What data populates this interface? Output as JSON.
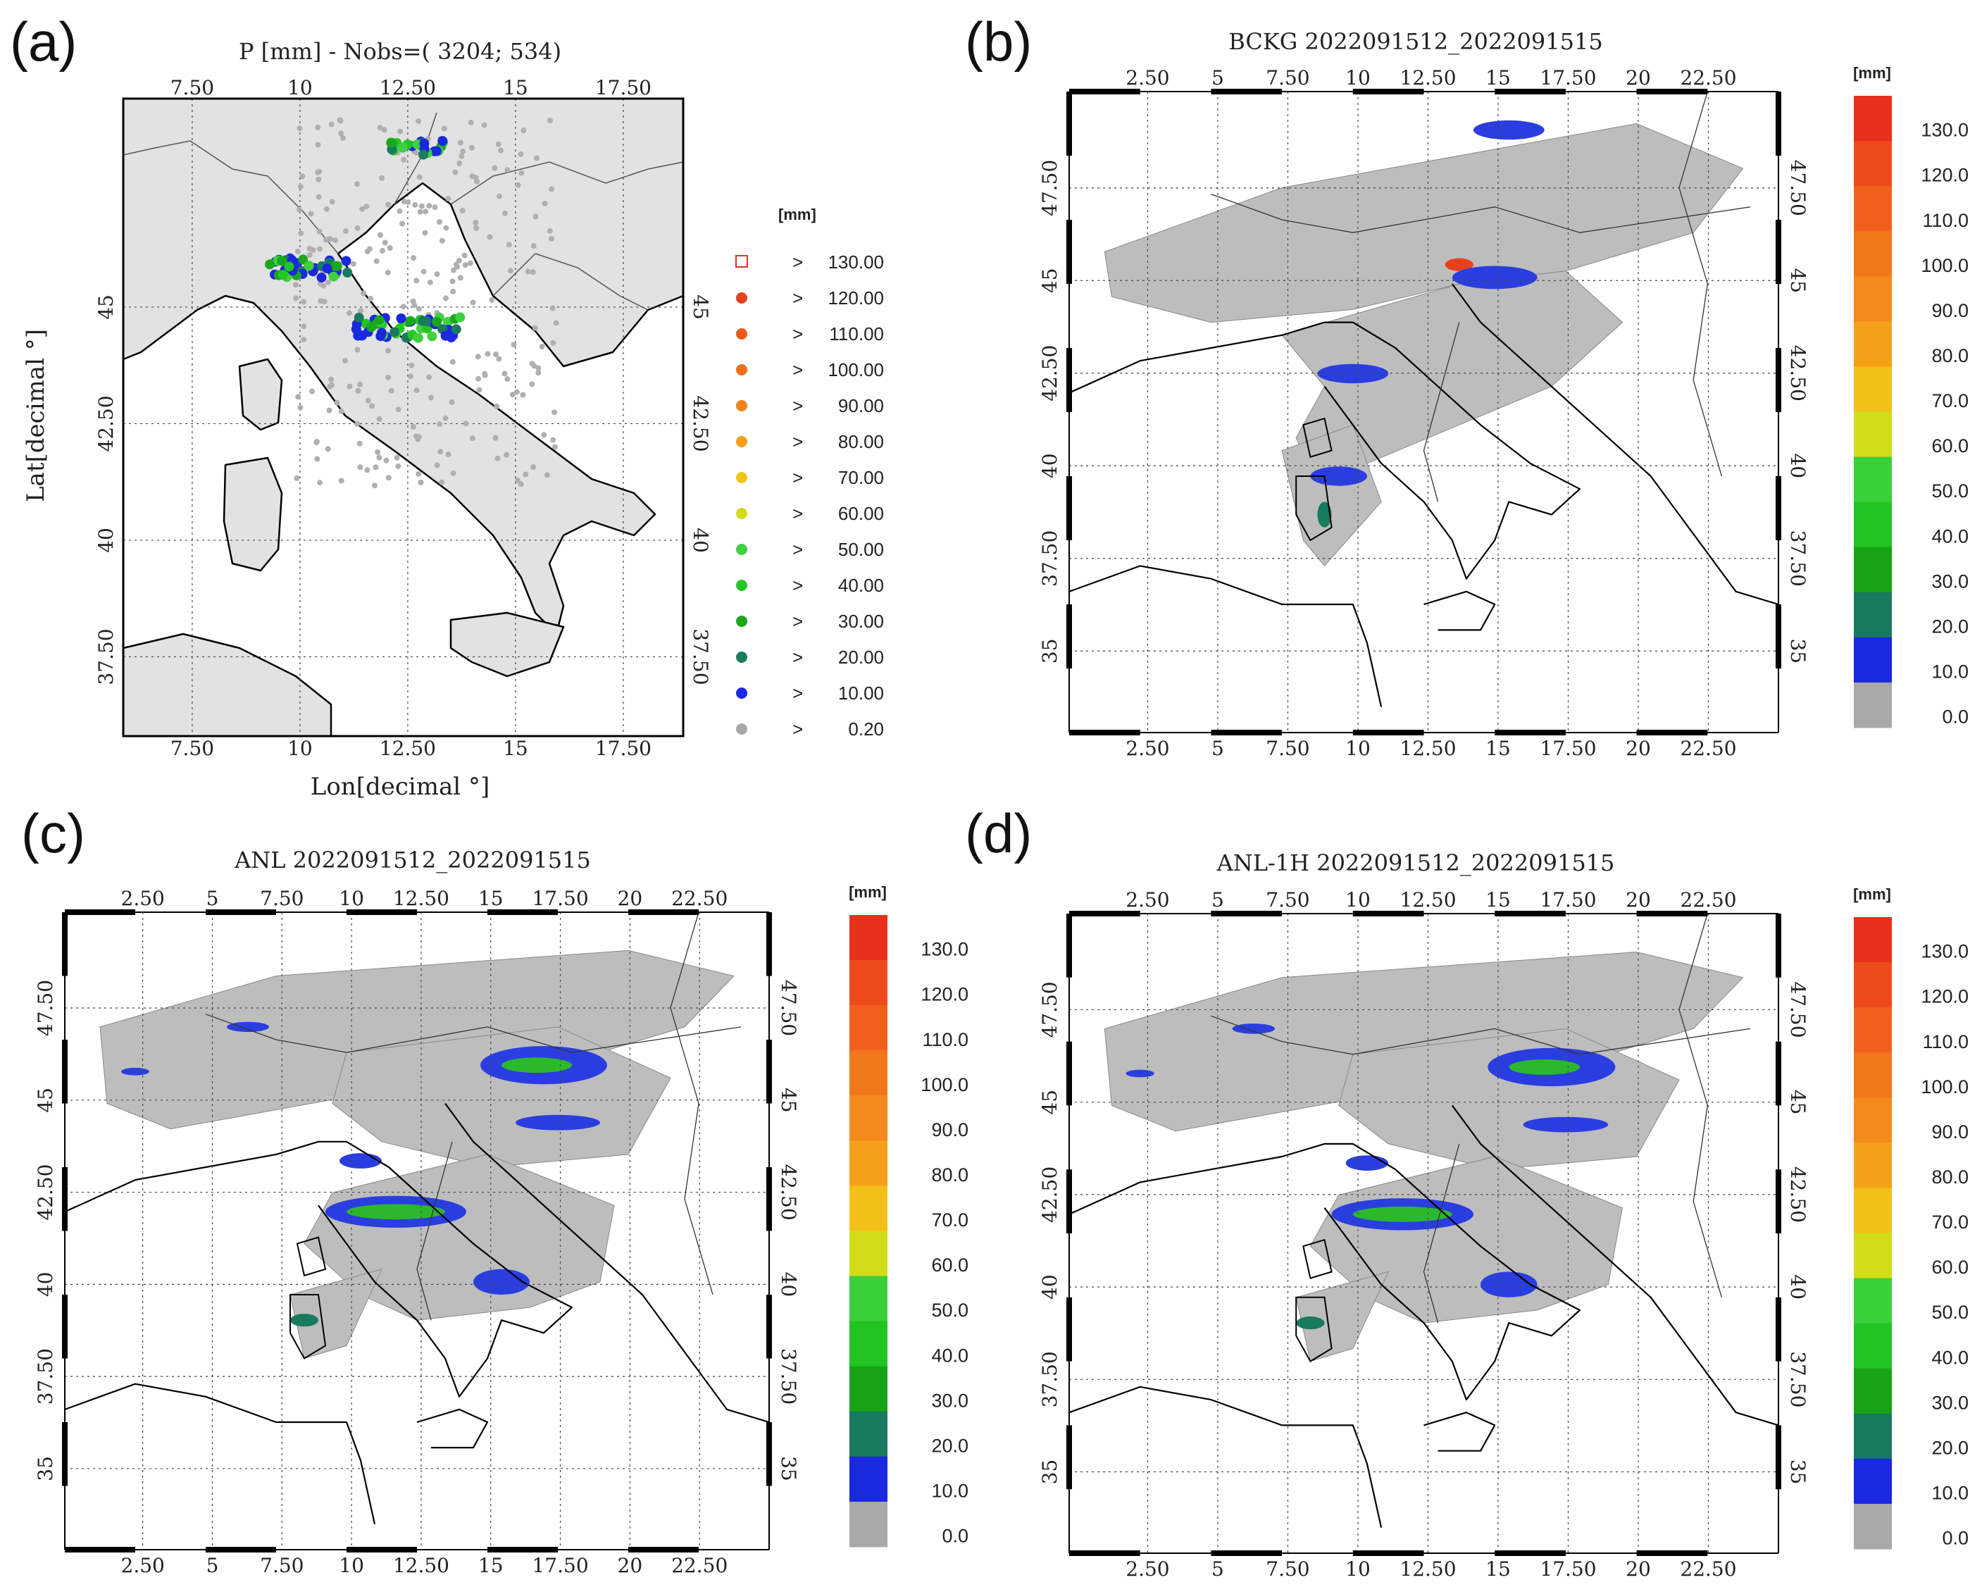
{
  "panels": [
    {
      "letter": "(a)",
      "title": "P [mm] - Nobs=( 3204;  534)",
      "xlabel": "Lon[decimal °]",
      "ylabel": "Lat[decimal °]",
      "lon_ticks": [
        "7.50",
        "10",
        "12.50",
        "15",
        "17.50"
      ],
      "lat_ticks": [
        "37.50",
        "40",
        "42.50",
        "45"
      ],
      "legend_unit": "[mm]",
      "legend": [
        {
          "label": "> 130.00",
          "color": "#e03020",
          "marker": "open-square"
        },
        {
          "label": "> 120.00",
          "color": "#e8401c",
          "marker": "dot"
        },
        {
          "label": "> 110.00",
          "color": "#ee5a1c",
          "marker": "dot"
        },
        {
          "label": "> 100.00",
          "color": "#f06f1c",
          "marker": "dot"
        },
        {
          "label": "> 90.00",
          "color": "#f2821c",
          "marker": "dot"
        },
        {
          "label": "> 80.00",
          "color": "#f5a01c",
          "marker": "dot"
        },
        {
          "label": "> 70.00",
          "color": "#f2c418",
          "marker": "dot"
        },
        {
          "label": "> 60.00",
          "color": "#d4dc18",
          "marker": "dot"
        },
        {
          "label": "> 50.00",
          "color": "#40d040",
          "marker": "dot"
        },
        {
          "label": "> 40.00",
          "color": "#22c822",
          "marker": "dot"
        },
        {
          "label": "> 30.00",
          "color": "#1aa81a",
          "marker": "dot"
        },
        {
          "label": "> 20.00",
          "color": "#1a7a60",
          "marker": "dot"
        },
        {
          "label": "> 10.00",
          "color": "#1a28e0",
          "marker": "dot"
        },
        {
          "label": "> 0.20",
          "color": "#a8a8a8",
          "marker": "dot"
        }
      ]
    },
    {
      "letter": "(b)",
      "title": "BCKG 2022091512_2022091515"
    },
    {
      "letter": "(c)",
      "title": "ANL 2022091512_2022091515"
    },
    {
      "letter": "(d)",
      "title": "ANL-1H 2022091512_2022091515"
    }
  ],
  "grid_lon_ticks": [
    "2.50",
    "5",
    "7.50",
    "10",
    "12.50",
    "15",
    "17.50",
    "20",
    "22.50"
  ],
  "grid_lat_ticks": [
    "35",
    "37.50",
    "40",
    "42.50",
    "45",
    "47.50"
  ],
  "colorbar": {
    "unit": "[mm]",
    "labels": [
      "130.0",
      "120.0",
      "110.0",
      "100.0",
      "90.0",
      "80.0",
      "70.0",
      "60.0",
      "50.0",
      "40.0",
      "30.0",
      "20.0",
      "10.0",
      "0.0"
    ],
    "colors": [
      "#e8301c",
      "#ee4a1c",
      "#f0601c",
      "#f2761c",
      "#f48a1c",
      "#f6a01a",
      "#f2c018",
      "#d2dc18",
      "#3ad03a",
      "#22c422",
      "#16a416",
      "#187a5e",
      "#1a28e0",
      "#a8a8a8"
    ]
  },
  "fills": {
    "land_a": "#e2e2e2",
    "precip_grey": "#bdbdbd",
    "precip_blue": "#2a3ee0",
    "precip_green": "#2cb82c",
    "precip_teal": "#187a5e",
    "precip_red": "#e8401c"
  }
}
